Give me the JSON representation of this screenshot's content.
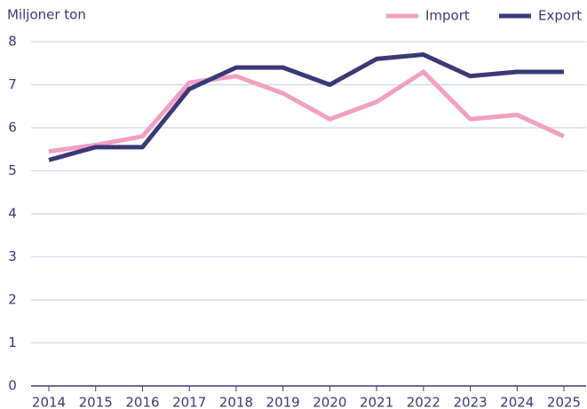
{
  "chart_data": {
    "type": "line",
    "y_label": "Miljoner ton",
    "categories": [
      "2014",
      "2015",
      "2016",
      "2017",
      "2018",
      "2019",
      "2020",
      "2021",
      "2022",
      "2023",
      "2024",
      "2025"
    ],
    "series": [
      {
        "name": "Import",
        "color": "#f19fc2",
        "values": [
          5.45,
          5.6,
          5.8,
          7.05,
          7.2,
          6.8,
          6.2,
          6.6,
          7.3,
          6.2,
          6.3,
          5.8
        ]
      },
      {
        "name": "Export",
        "color": "#3a3978",
        "values": [
          5.25,
          5.55,
          5.55,
          6.9,
          7.4,
          7.4,
          7.0,
          7.6,
          7.7,
          7.2,
          7.3,
          7.3
        ]
      }
    ],
    "ylim": [
      0,
      8
    ],
    "yticks": [
      0,
      1,
      2,
      3,
      4,
      5,
      6,
      7,
      8
    ],
    "grid": true,
    "legend": "top-right"
  }
}
